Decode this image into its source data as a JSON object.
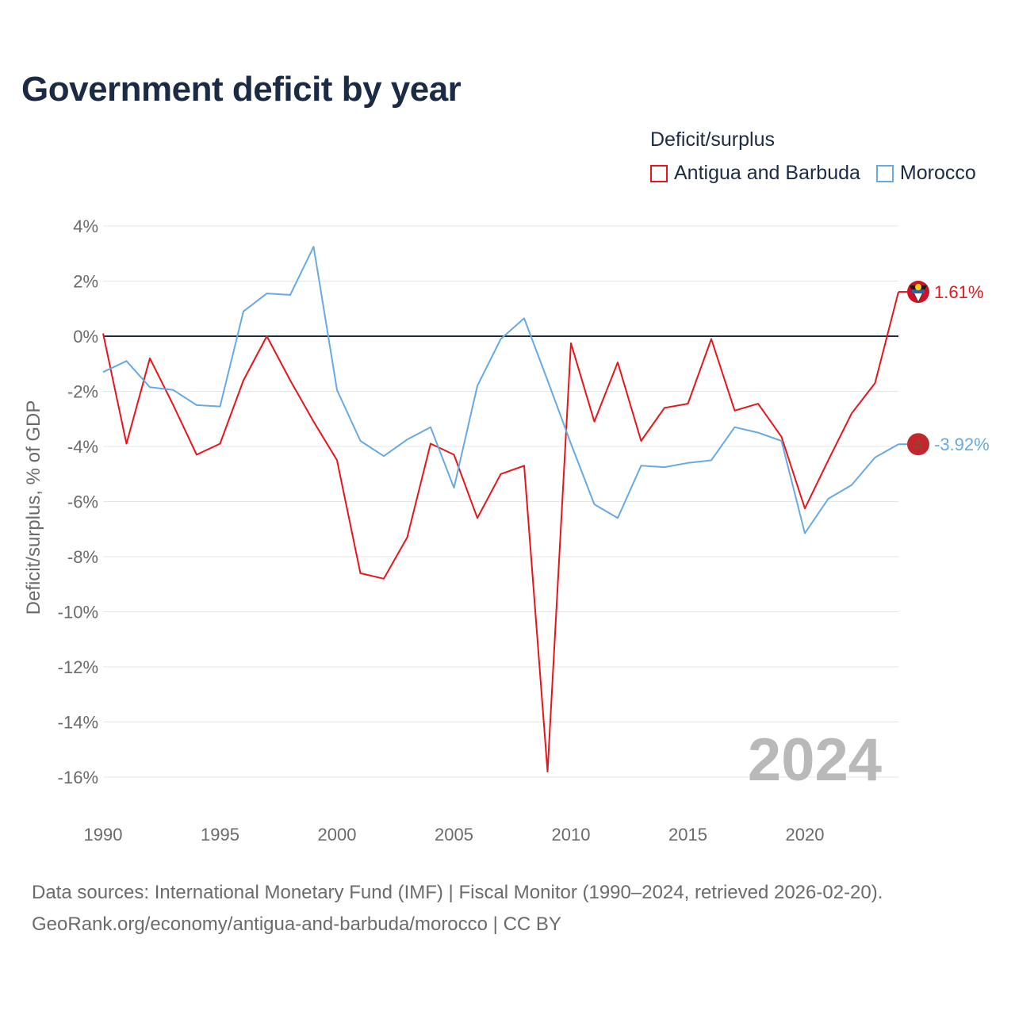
{
  "title": "Government deficit by year",
  "legend": {
    "title": "Deficit/surplus",
    "items": [
      {
        "label": "Antigua and Barbuda",
        "color": "#e8141a"
      },
      {
        "label": "Morocco",
        "color": "#67a9e3"
      }
    ]
  },
  "footer": {
    "line1": "Data sources: International Monetary Fund (IMF) | Fiscal Monitor (1990–2024, retrieved 2026-02-20).",
    "line2": "GeoRank.org/economy/antigua-and-barbuda/morocco | CC BY"
  },
  "chart_data": {
    "type": "line",
    "title": "Government deficit by year",
    "xlabel": "",
    "ylabel": "Deficit/surplus, % of GDP",
    "xlim": [
      1990,
      2024
    ],
    "ylim": [
      -16,
      4
    ],
    "x_ticks": [
      1990,
      1995,
      2000,
      2005,
      2010,
      2015,
      2020
    ],
    "y_ticks": [
      4,
      2,
      0,
      -2,
      -4,
      -6,
      -8,
      -10,
      -12,
      -14,
      -16
    ],
    "y_tick_labels": [
      "4%",
      "2%",
      "0%",
      "-2%",
      "-4%",
      "-6%",
      "-8%",
      "-10%",
      "-12%",
      "-14%",
      "-16%"
    ],
    "year_watermark": "2024",
    "x": [
      1990,
      1991,
      1992,
      1993,
      1994,
      1995,
      1996,
      1997,
      1998,
      1999,
      2000,
      2001,
      2002,
      2003,
      2004,
      2005,
      2006,
      2007,
      2008,
      2009,
      2010,
      2011,
      2012,
      2013,
      2014,
      2015,
      2016,
      2017,
      2018,
      2019,
      2020,
      2021,
      2022,
      2023,
      2024
    ],
    "series": [
      {
        "name": "Antigua and Barbuda",
        "color": "#e8141a",
        "end_label": "1.61%",
        "values": [
          0.1,
          -3.9,
          -0.8,
          -2.5,
          -4.3,
          -3.9,
          -1.6,
          0.0,
          -1.6,
          -3.1,
          -4.5,
          -8.6,
          -8.8,
          -7.3,
          -3.9,
          -4.3,
          -6.6,
          -5.0,
          -4.7,
          -15.8,
          -0.25,
          -3.1,
          -0.95,
          -3.8,
          -2.6,
          -2.45,
          -0.1,
          -2.7,
          -2.45,
          -3.65,
          -6.25,
          -4.5,
          -2.8,
          -1.7,
          1.61
        ]
      },
      {
        "name": "Morocco",
        "color": "#67a9e3",
        "end_label": "-3.92%",
        "values": [
          -1.3,
          -0.9,
          -1.85,
          -1.95,
          -2.5,
          -2.55,
          0.9,
          1.55,
          1.5,
          3.25,
          -1.95,
          -3.8,
          -4.35,
          -3.75,
          -3.3,
          -5.5,
          -1.8,
          -0.1,
          0.65,
          -1.6,
          -3.9,
          -6.1,
          -6.6,
          -4.7,
          -4.75,
          -4.6,
          -4.5,
          -3.3,
          -3.5,
          -3.8,
          -7.15,
          -5.9,
          -5.4,
          -4.4,
          -3.92
        ]
      }
    ]
  }
}
